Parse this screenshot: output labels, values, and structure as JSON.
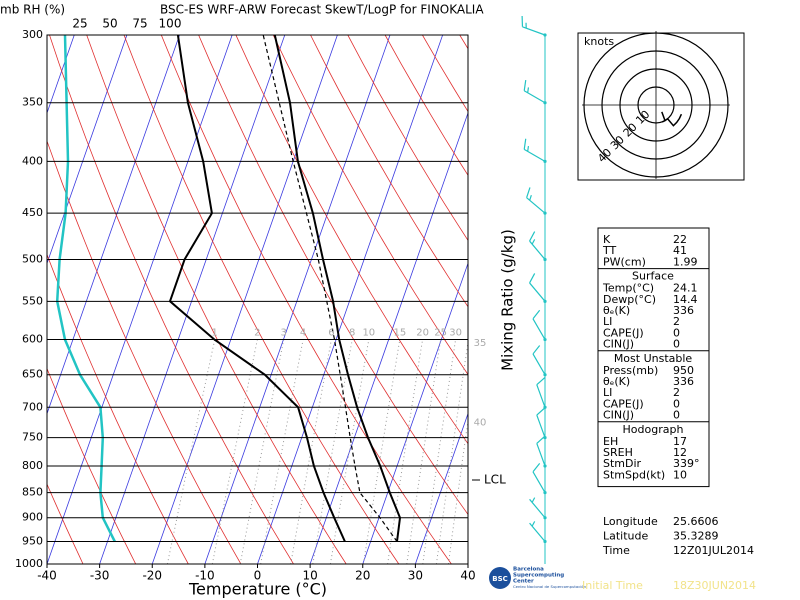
{
  "chart_data": {
    "type": "skewt",
    "title": "BSC-ES WRF-ARW Forecast SkewT/LogP for FINOKALIA",
    "corner_label": "mb RH (%)",
    "xlabel": "Temperature (°C)",
    "xlim": [
      -40,
      40
    ],
    "xticks": [
      -40,
      -30,
      -20,
      -10,
      0,
      10,
      20,
      30,
      40
    ],
    "ylim": [
      1000,
      300
    ],
    "yticks": [
      300,
      350,
      400,
      450,
      500,
      550,
      600,
      650,
      700,
      750,
      800,
      850,
      900,
      950,
      1000
    ],
    "log_y": true,
    "rh_lim": [
      0,
      100
    ],
    "rh_ticks": [
      25,
      50,
      75,
      100
    ],
    "temperature": {
      "color": "#000000",
      "pressure": [
        950,
        900,
        850,
        800,
        750,
        700,
        650,
        600,
        550,
        500,
        450,
        400,
        350,
        300
      ],
      "values": [
        25.0,
        24.0,
        20.4,
        16.8,
        12.6,
        8.5,
        4.6,
        0.6,
        -3.1,
        -7.8,
        -12.8,
        -19.1,
        -24.5,
        -31.9
      ]
    },
    "dewpoint": {
      "color": "#000000",
      "pressure": [
        950,
        900,
        850,
        800,
        750,
        700,
        650,
        600,
        550,
        500,
        450,
        400,
        350,
        300
      ],
      "values": [
        15.1,
        11.5,
        7.8,
        4.2,
        1.0,
        -2.7,
        -11.2,
        -23.1,
        -34.1,
        -34.1,
        -32.0,
        -37.1,
        -43.9,
        -50.3
      ]
    },
    "parcel": {
      "color": "#000000",
      "pressure": [
        950,
        900,
        850,
        800,
        750,
        700,
        600,
        500,
        400,
        300
      ],
      "values": [
        25.0,
        20.2,
        14.7,
        12.0,
        9.2,
        6.3,
        -0.3,
        -8.7,
        -20.0,
        -34.1
      ]
    },
    "rh": {
      "color": "#22c4c4",
      "pressure": [
        950,
        900,
        850,
        800,
        750,
        700,
        650,
        600,
        550,
        500,
        450,
        400,
        300
      ],
      "values": [
        54,
        44,
        42,
        43,
        44,
        42,
        25,
        12.5,
        6,
        8,
        13,
        15,
        12.5
      ]
    },
    "mixing_ratio": {
      "label": "Mixing Ratio (g/kg)",
      "values": [
        1,
        2,
        3,
        4,
        6,
        8,
        10,
        15,
        20,
        25,
        30,
        35,
        40
      ]
    },
    "lcl": {
      "label": "LCL",
      "pressure": 826
    },
    "wind": {
      "color": "#22c4c4",
      "pressure": [
        300,
        350,
        400,
        450,
        500,
        550,
        600,
        650,
        700,
        750,
        800,
        850,
        900,
        950
      ],
      "speed": [
        15,
        15,
        15,
        15,
        15,
        10,
        10,
        10,
        10,
        10,
        10,
        10,
        5,
        5
      ],
      "direction": [
        290,
        300,
        300,
        310,
        320,
        320,
        330,
        330,
        340,
        340,
        340,
        330,
        320,
        320
      ]
    },
    "hodograph": {
      "label": "knots",
      "rings": [
        10,
        20,
        30,
        40
      ]
    },
    "indices": {
      "top": [
        [
          "K",
          22
        ],
        [
          "TT",
          41
        ],
        [
          "PW(cm)",
          1.99
        ]
      ],
      "sections": [
        {
          "title": "Surface",
          "rows": [
            [
              "Temp(°C)",
              24.1
            ],
            [
              "Dewp(°C)",
              14.4
            ],
            [
              "θₑ(K)",
              336
            ],
            [
              "LI",
              2
            ],
            [
              "CAPE(J)",
              0
            ],
            [
              "CIN(J)",
              0
            ]
          ]
        },
        {
          "title": "Most Unstable",
          "rows": [
            [
              "Press(mb)",
              950
            ],
            [
              "θₑ(K)",
              336
            ],
            [
              "LI",
              2
            ],
            [
              "CAPE(J)",
              0
            ],
            [
              "CIN(J)",
              0
            ]
          ]
        },
        {
          "title": "Hodograph",
          "rows": [
            [
              "EH",
              17
            ],
            [
              "SREH",
              12
            ],
            [
              "StmDir",
              "339°"
            ],
            [
              "StmSpd(kt)",
              10
            ]
          ]
        }
      ]
    },
    "info": [
      [
        "Longitude",
        25.6606
      ],
      [
        "Latitude",
        35.3289
      ],
      [
        "Time",
        "12Z01JUL2014"
      ]
    ],
    "footer": {
      "initial_label": "Initial Time",
      "initial_time": "18Z30JUN2014",
      "logo": [
        "BSC",
        "Barcelona",
        "Supercomputing",
        "Center",
        "Centro Nacional de Supercomputación"
      ]
    }
  }
}
